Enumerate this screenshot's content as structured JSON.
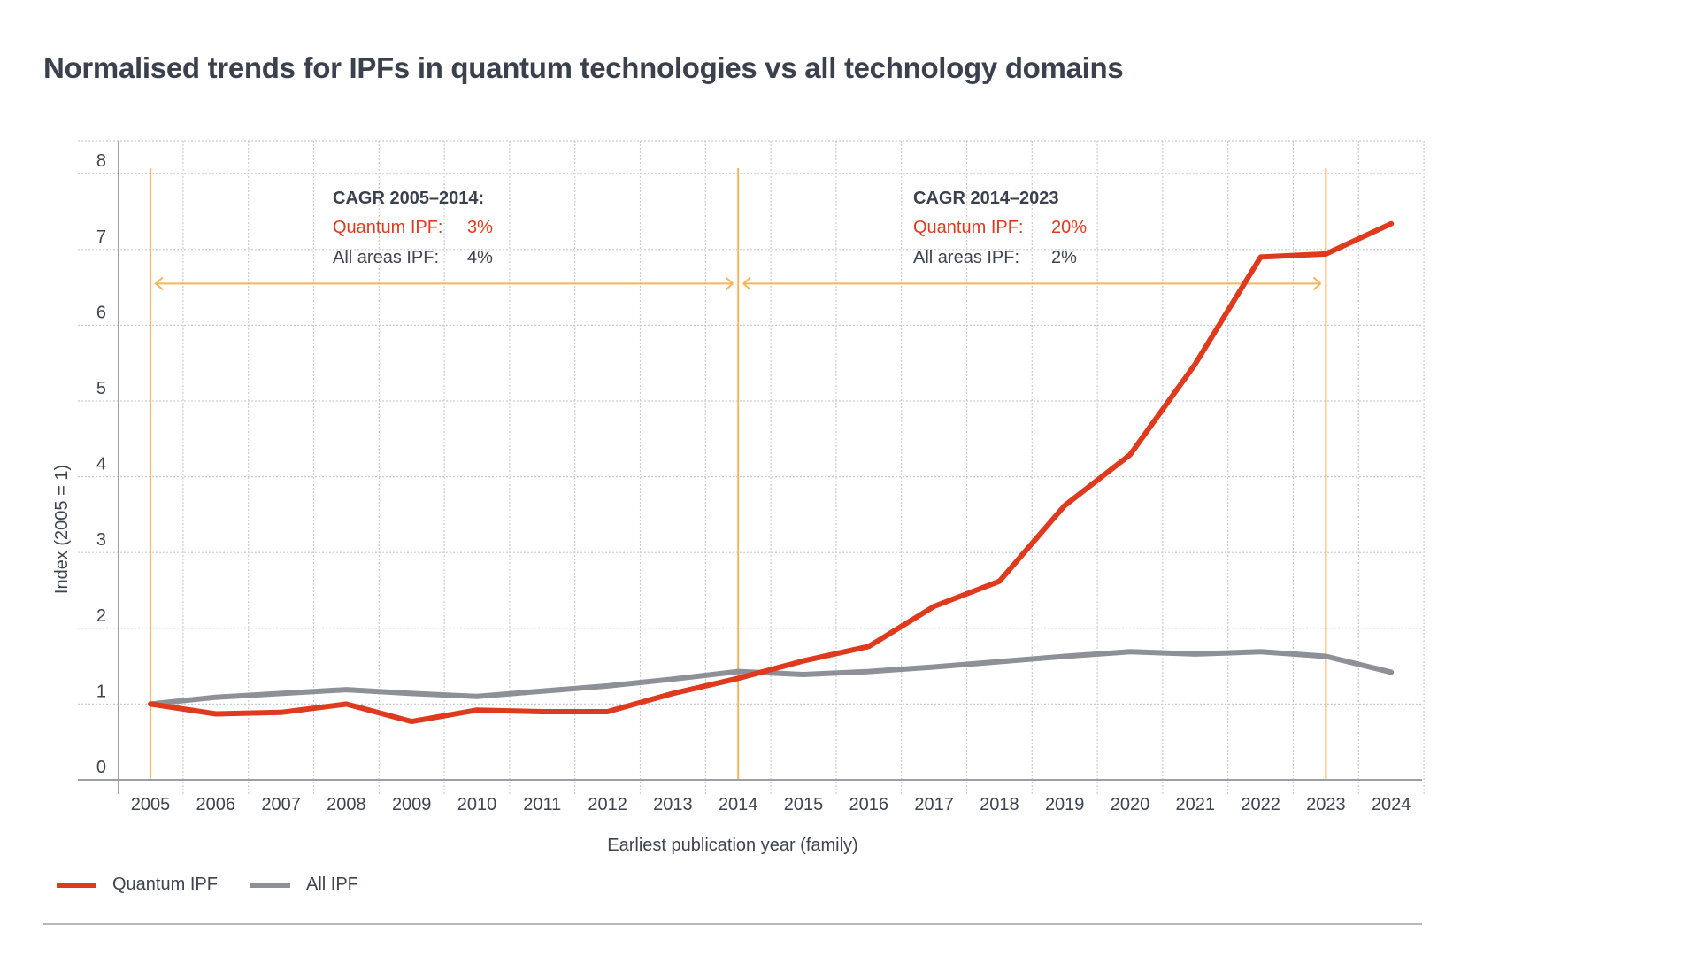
{
  "chart_data": {
    "type": "line",
    "title": "Normalised trends for IPFs in quantum technologies vs all technology domains",
    "xlabel": "Earliest publication year (family)",
    "ylabel": "Index (2005 = 1)",
    "ylim": [
      0,
      8
    ],
    "yticks": [
      "0",
      "1",
      "2",
      "3",
      "4",
      "5",
      "6",
      "7",
      "8"
    ],
    "grid": true,
    "legend_position": "bottom-left",
    "x": [
      "2005",
      "2006",
      "2007",
      "2008",
      "2009",
      "2010",
      "2011",
      "2012",
      "2013",
      "2014",
      "2015",
      "2016",
      "2017",
      "2018",
      "2019",
      "2020",
      "2021",
      "2022",
      "2023",
      "2024"
    ],
    "series": [
      {
        "name": "Quantum IPF",
        "color": "#e03a1e",
        "values": [
          1.0,
          0.87,
          0.89,
          1.0,
          0.77,
          0.92,
          0.9,
          0.9,
          1.14,
          1.34,
          1.57,
          1.76,
          2.29,
          2.62,
          3.62,
          4.29,
          5.49,
          6.9,
          6.94,
          7.34
        ]
      },
      {
        "name": "All IPF",
        "color": "#8d9097",
        "values": [
          1.0,
          1.09,
          1.14,
          1.19,
          1.14,
          1.1,
          1.17,
          1.24,
          1.33,
          1.43,
          1.39,
          1.43,
          1.49,
          1.56,
          1.63,
          1.69,
          1.66,
          1.69,
          1.63,
          1.42
        ]
      }
    ],
    "annotations": {
      "marker_color": "#f7b45a",
      "marker_years": [
        "2005",
        "2014",
        "2023"
      ],
      "periods": [
        {
          "heading": "CAGR 2005–2014:",
          "quantum_label": "Quantum IPF:",
          "quantum_value": "3%",
          "all_label": "All areas IPF:",
          "all_value": "4%",
          "from": "2005",
          "to": "2014"
        },
        {
          "heading": "CAGR 2014–2023",
          "quantum_label": "Quantum  IPF:",
          "quantum_value": "20%",
          "all_label": "All areas  IPF:",
          "all_value": "2%",
          "from": "2014",
          "to": "2023"
        }
      ]
    }
  }
}
